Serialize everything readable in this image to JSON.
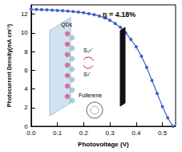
{
  "chart_data": {
    "type": "line",
    "x_label": "Photovoltage (V)",
    "y_label": "Photocurrent Density(mA cm⁻²)",
    "annotations": [
      "η = 4.18%",
      "QDs",
      "S₂²⁻",
      "S²⁻",
      "Fullerene"
    ],
    "x": [
      0,
      0.02,
      0.04,
      0.06,
      0.08,
      0.1,
      0.12,
      0.14,
      0.16,
      0.18,
      0.2,
      0.22,
      0.24,
      0.26,
      0.28,
      0.3,
      0.32,
      0.34,
      0.36,
      0.38,
      0.4,
      0.42,
      0.44,
      0.46,
      0.48,
      0.5,
      0.52,
      0.54
    ],
    "series": [
      {
        "color": "#3a5fcd",
        "marker": "circle",
        "line_style": "solid",
        "values": [
          12.52,
          12.5,
          12.48,
          12.46,
          12.43,
          12.4,
          12.37,
          12.33,
          12.28,
          12.22,
          12.15,
          12.05,
          11.95,
          11.8,
          11.6,
          11.35,
          11.0,
          10.6,
          10.0,
          9.3,
          8.5,
          7.5,
          6.3,
          4.9,
          3.5,
          2.1,
          0.9,
          0.0
        ]
      }
    ],
    "xlim": [
      0,
      0.55
    ],
    "xticks": [
      {
        "value": 0,
        "label": "0.0"
      },
      0.1,
      0.2,
      0.3,
      0.4,
      0.5
    ],
    "ylim": [
      0,
      13
    ],
    "yticks": [
      0,
      2,
      4,
      6,
      8,
      10,
      12
    ],
    "grid": false
  }
}
